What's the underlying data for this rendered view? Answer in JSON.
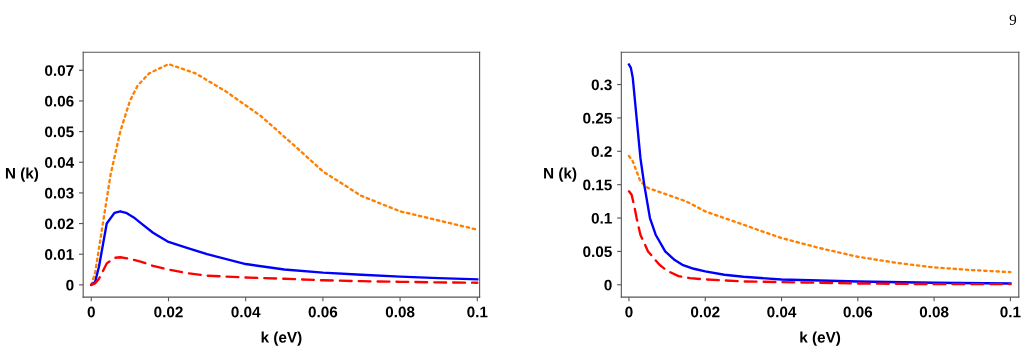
{
  "chart_data": [
    {
      "type": "line",
      "xlabel": "k (eV)",
      "ylabel": "N (k)",
      "annotations": [
        "9"
      ],
      "xlim": [
        -0.0021,
        0.1006
      ],
      "ylim": [
        -0.004,
        0.0759
      ],
      "xticks": [
        0,
        0.02,
        0.04,
        0.06,
        0.08,
        0.1
      ],
      "yticks": [
        0,
        0.01,
        0.02,
        0.03,
        0.04,
        0.05,
        0.06,
        0.07
      ],
      "grid": false,
      "legend": false,
      "series": [
        {
          "color": "#ff8000",
          "line_style": "dotted",
          "x": [
            0,
            0.001,
            0.003,
            0.005,
            0.0075,
            0.01,
            0.012,
            0.015,
            0.02,
            0.027,
            0.035,
            0.044,
            0.053,
            0.06,
            0.07,
            0.08,
            0.09,
            0.1
          ],
          "values": [
            0,
            0.004,
            0.02,
            0.036,
            0.05,
            0.06,
            0.065,
            0.069,
            0.072,
            0.069,
            0.063,
            0.055,
            0.045,
            0.037,
            0.029,
            0.024,
            0.021,
            0.018
          ]
        },
        {
          "color": "#0000ff",
          "line_style": "solid",
          "x": [
            0,
            0.001,
            0.002,
            0.004,
            0.006,
            0.0075,
            0.009,
            0.011,
            0.013,
            0.016,
            0.02,
            0.025,
            0.03,
            0.04,
            0.05,
            0.06,
            0.07,
            0.08,
            0.09,
            0.1
          ],
          "values": [
            0,
            0.001,
            0.006,
            0.02,
            0.0235,
            0.024,
            0.0235,
            0.022,
            0.02,
            0.017,
            0.014,
            0.012,
            0.01,
            0.0068,
            0.005,
            0.004,
            0.0033,
            0.0027,
            0.0022,
            0.0018
          ]
        },
        {
          "color": "#ff0000",
          "line_style": "dashed",
          "x": [
            0,
            0.001,
            0.002,
            0.004,
            0.006,
            0.0075,
            0.01,
            0.013,
            0.016,
            0.02,
            0.025,
            0.03,
            0.04,
            0.05,
            0.06,
            0.07,
            0.08,
            0.09,
            0.1
          ],
          "values": [
            0,
            0.0005,
            0.002,
            0.007,
            0.0088,
            0.009,
            0.0085,
            0.0075,
            0.0062,
            0.005,
            0.0038,
            0.003,
            0.0024,
            0.002,
            0.0015,
            0.0012,
            0.001,
            0.0008,
            0.0007
          ]
        }
      ]
    },
    {
      "type": "line",
      "xlabel": "k (eV)",
      "ylabel": "N (k)",
      "xlim": [
        -0.002,
        0.1022
      ],
      "ylim": [
        -0.0185,
        0.3485
      ],
      "xticks": [
        0,
        0.02,
        0.04,
        0.06,
        0.08,
        0.1
      ],
      "yticks": [
        0,
        0.05,
        0.1,
        0.15,
        0.2,
        0.25,
        0.3
      ],
      "grid": false,
      "legend": false,
      "series": [
        {
          "color": "#ff8000",
          "line_style": "dotted",
          "x": [
            0,
            0.001,
            0.002,
            0.003,
            0.005,
            0.01,
            0.015,
            0.02,
            0.03,
            0.04,
            0.05,
            0.06,
            0.07,
            0.08,
            0.09,
            0.1
          ],
          "values": [
            0.193,
            0.185,
            0.17,
            0.155,
            0.145,
            0.135,
            0.125,
            0.11,
            0.09,
            0.07,
            0.055,
            0.042,
            0.033,
            0.026,
            0.022,
            0.019
          ]
        },
        {
          "color": "#0000ff",
          "line_style": "solid",
          "x": [
            0,
            0.0005,
            0.001,
            0.002,
            0.003,
            0.004,
            0.0055,
            0.007,
            0.0095,
            0.012,
            0.014,
            0.017,
            0.02,
            0.025,
            0.03,
            0.04,
            0.06,
            0.08,
            0.1
          ],
          "values": [
            0.33,
            0.325,
            0.31,
            0.25,
            0.19,
            0.15,
            0.1,
            0.075,
            0.05,
            0.037,
            0.03,
            0.024,
            0.02,
            0.015,
            0.012,
            0.008,
            0.005,
            0.003,
            0.002
          ]
        },
        {
          "color": "#ff0000",
          "line_style": "dashed",
          "x": [
            0,
            0.0007,
            0.0015,
            0.002,
            0.003,
            0.005,
            0.008,
            0.01,
            0.013,
            0.016,
            0.02,
            0.03,
            0.04,
            0.06,
            0.08,
            0.1
          ],
          "values": [
            0.14,
            0.135,
            0.115,
            0.1,
            0.075,
            0.05,
            0.03,
            0.021,
            0.013,
            0.01,
            0.008,
            0.005,
            0.004,
            0.002,
            0.001,
            0.001
          ]
        }
      ]
    }
  ]
}
